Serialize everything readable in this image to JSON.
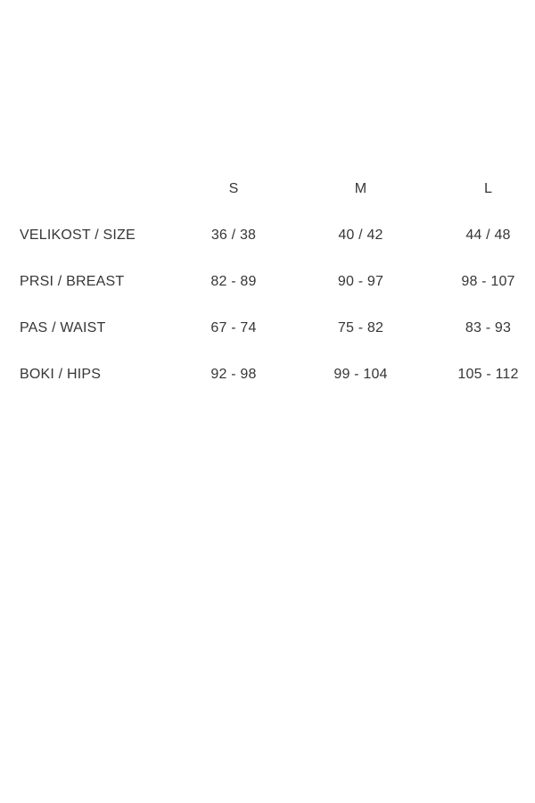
{
  "table": {
    "text_color": "#363636",
    "background_color": "#ffffff",
    "corner": "",
    "columns": [
      "S",
      "M",
      "L"
    ],
    "rows": [
      {
        "label": "VELIKOST / SIZE",
        "values": [
          "36 / 38",
          "40 / 42",
          "44 / 48"
        ]
      },
      {
        "label": "PRSI / BREAST",
        "values": [
          "82 - 89",
          "90 - 97",
          "98 - 107"
        ]
      },
      {
        "label": "PAS / WAIST",
        "values": [
          "67 - 74",
          "75 - 82",
          "83 - 93"
        ]
      },
      {
        "label": "BOKI / HIPS",
        "values": [
          "92 - 98",
          "99 - 104",
          "105 - 112"
        ]
      }
    ]
  },
  "chart_data": {
    "type": "table",
    "title": "",
    "columns": [
      "",
      "S",
      "M",
      "L"
    ],
    "rows": [
      [
        "VELIKOST / SIZE",
        "36 / 38",
        "40 / 42",
        "44 / 48"
      ],
      [
        "PRSI / BREAST",
        "82 - 89",
        "90 - 97",
        "98 - 107"
      ],
      [
        "PAS / WAIST",
        "67 - 74",
        "75 - 82",
        "83 - 93"
      ],
      [
        "BOKI / HIPS",
        "92 - 98",
        "99 - 104",
        "105 - 112"
      ]
    ]
  }
}
